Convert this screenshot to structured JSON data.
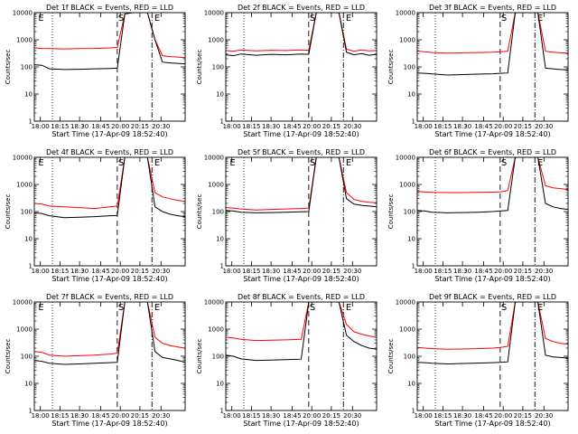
{
  "colors": {
    "events": "#000000",
    "lld": "#ff0000",
    "axis": "#000000",
    "background": "#ffffff"
  },
  "chart_data": [
    {
      "type": "line",
      "title": "Det 1f BLACK = Events, RED = LLD",
      "xlabel": "Start Time (17-Apr-09 18:52:40)",
      "ylabel": "Counts/sec",
      "xticks": [
        "18:00",
        "18:15",
        "18:30",
        "18:45",
        "20:00",
        "20:15",
        "20:30"
      ],
      "yticks": [
        "1",
        "10",
        "100",
        "1000",
        "10000"
      ],
      "ylim": [
        1,
        10000
      ],
      "yscale": "log",
      "annotations": [
        "E",
        "S",
        "E"
      ],
      "series": [
        {
          "color": "#ff0000",
          "x": [
            0,
            0.05,
            0.1,
            0.2,
            0.3,
            0.4,
            0.5,
            0.55,
            0.6,
            0.65,
            0.7,
            0.75,
            0.8,
            0.85,
            0.9,
            0.95,
            1
          ],
          "y": [
            500,
            480,
            470,
            460,
            470,
            480,
            500,
            520,
            9000,
            10000,
            10000,
            10000,
            1000,
            260,
            240,
            230,
            220
          ]
        },
        {
          "color": "#000000",
          "x": [
            0,
            0.05,
            0.1,
            0.2,
            0.3,
            0.4,
            0.5,
            0.55,
            0.6,
            0.65,
            0.7,
            0.75,
            0.8,
            0.85,
            0.9,
            0.95,
            1
          ],
          "y": [
            120,
            115,
            85,
            80,
            82,
            85,
            88,
            90,
            9000,
            10000,
            10000,
            10000,
            1000,
            150,
            140,
            135,
            130
          ]
        }
      ]
    },
    {
      "type": "line",
      "title": "Det 2f BLACK = Events, RED = LLD",
      "xlabel": "Start Time (17-Apr-09 18:52:40)",
      "ylabel": "Counts/sec",
      "xticks": [
        "18:00",
        "18:15",
        "18:30",
        "18:45",
        "20:00",
        "20:15",
        "20:30"
      ],
      "yticks": [
        "1",
        "10",
        "100",
        "1000",
        "10000"
      ],
      "ylim": [
        1,
        10000
      ],
      "yscale": "log",
      "annotations": [
        "S",
        "E"
      ],
      "series": [
        {
          "color": "#ff0000",
          "x": [
            0,
            0.05,
            0.1,
            0.2,
            0.3,
            0.4,
            0.5,
            0.55,
            0.6,
            0.65,
            0.7,
            0.75,
            0.8,
            0.85,
            0.9,
            0.95,
            1
          ],
          "y": [
            400,
            380,
            420,
            390,
            410,
            400,
            420,
            410,
            10000,
            10000,
            10000,
            10000,
            450,
            380,
            420,
            390,
            400
          ]
        },
        {
          "color": "#000000",
          "x": [
            0,
            0.05,
            0.1,
            0.2,
            0.3,
            0.4,
            0.5,
            0.55,
            0.6,
            0.65,
            0.7,
            0.75,
            0.8,
            0.85,
            0.9,
            0.95,
            1
          ],
          "y": [
            280,
            260,
            300,
            270,
            290,
            280,
            300,
            290,
            10000,
            10000,
            10000,
            10000,
            350,
            280,
            310,
            270,
            290
          ]
        }
      ]
    },
    {
      "type": "line",
      "title": "Det 3f BLACK = Events, RED = LLD",
      "xlabel": "Start Time (17-Apr-09 18:52:40)",
      "ylabel": "Counts/sec",
      "xticks": [
        "18:00",
        "18:15",
        "18:30",
        "18:45",
        "20:00",
        "20:15",
        "20:30"
      ],
      "yticks": [
        "1",
        "10",
        "100",
        "1000",
        "10000"
      ],
      "ylim": [
        1,
        10000
      ],
      "yscale": "log",
      "annotations": [
        "S",
        "E"
      ],
      "series": [
        {
          "color": "#ff0000",
          "x": [
            0,
            0.05,
            0.1,
            0.2,
            0.3,
            0.4,
            0.5,
            0.55,
            0.6,
            0.65,
            0.7,
            0.75,
            0.8,
            0.85,
            0.9,
            0.95,
            1
          ],
          "y": [
            380,
            360,
            340,
            320,
            330,
            340,
            350,
            360,
            380,
            10000,
            10000,
            10000,
            10000,
            380,
            350,
            330,
            320
          ]
        },
        {
          "color": "#000000",
          "x": [
            0,
            0.05,
            0.1,
            0.2,
            0.3,
            0.4,
            0.5,
            0.55,
            0.6,
            0.65,
            0.7,
            0.75,
            0.8,
            0.85,
            0.9,
            0.95,
            1
          ],
          "y": [
            60,
            58,
            55,
            50,
            52,
            54,
            56,
            58,
            60,
            10000,
            10000,
            10000,
            10000,
            90,
            85,
            80,
            78
          ]
        }
      ]
    },
    {
      "type": "line",
      "title": "Det 4f BLACK = Events, RED = LLD",
      "xlabel": "Start Time (17-Apr-09 18:52:40)",
      "ylabel": "Counts/sec",
      "xticks": [
        "18:00",
        "18:15",
        "18:30",
        "18:45",
        "20:00",
        "20:15",
        "20:30"
      ],
      "yticks": [
        "1",
        "10",
        "100",
        "1000",
        "10000"
      ],
      "ylim": [
        1,
        10000
      ],
      "yscale": "log",
      "annotations": [
        "E",
        "S",
        "E"
      ],
      "series": [
        {
          "color": "#ff0000",
          "x": [
            0,
            0.05,
            0.1,
            0.2,
            0.3,
            0.4,
            0.5,
            0.55,
            0.6,
            0.65,
            0.7,
            0.75,
            0.8,
            0.85,
            0.9,
            0.95,
            1
          ],
          "y": [
            200,
            190,
            160,
            150,
            140,
            130,
            150,
            160,
            10000,
            10000,
            10000,
            10000,
            500,
            350,
            300,
            260,
            240
          ]
        },
        {
          "color": "#000000",
          "x": [
            0,
            0.05,
            0.1,
            0.2,
            0.3,
            0.4,
            0.5,
            0.55,
            0.6,
            0.65,
            0.7,
            0.75,
            0.8,
            0.85,
            0.9,
            0.95,
            1
          ],
          "y": [
            90,
            85,
            70,
            60,
            62,
            65,
            70,
            72,
            10000,
            10000,
            10000,
            10000,
            150,
            100,
            80,
            70,
            65
          ]
        }
      ]
    },
    {
      "type": "line",
      "title": "Det 5f BLACK = Events, RED = LLD",
      "xlabel": "Start Time (17-Apr-09 18:52:40)",
      "ylabel": "Counts/sec",
      "xticks": [
        "18:00",
        "18:15",
        "18:30",
        "18:45",
        "20:00",
        "20:15",
        "20:30"
      ],
      "yticks": [
        "1",
        "10",
        "100",
        "1000",
        "10000"
      ],
      "ylim": [
        1,
        10000
      ],
      "yscale": "log",
      "annotations": [
        "E",
        "S",
        "E"
      ],
      "series": [
        {
          "color": "#ff0000",
          "x": [
            0,
            0.05,
            0.1,
            0.2,
            0.3,
            0.4,
            0.5,
            0.55,
            0.6,
            0.65,
            0.7,
            0.75,
            0.8,
            0.85,
            0.9,
            0.95,
            1
          ],
          "y": [
            140,
            135,
            125,
            115,
            120,
            125,
            130,
            135,
            10000,
            10000,
            10000,
            10000,
            500,
            280,
            240,
            220,
            210
          ]
        },
        {
          "color": "#000000",
          "x": [
            0,
            0.05,
            0.1,
            0.2,
            0.3,
            0.4,
            0.5,
            0.55,
            0.6,
            0.65,
            0.7,
            0.75,
            0.8,
            0.85,
            0.9,
            0.95,
            1
          ],
          "y": [
            110,
            105,
            95,
            90,
            92,
            95,
            98,
            100,
            10000,
            10000,
            10000,
            10000,
            300,
            190,
            170,
            160,
            150
          ]
        }
      ]
    },
    {
      "type": "line",
      "title": "Det 6f BLACK = Events, RED = LLD",
      "xlabel": "Start Time (17-Apr-09 18:52:40)",
      "ylabel": "Counts/sec",
      "xticks": [
        "18:00",
        "18:15",
        "18:30",
        "18:45",
        "20:00",
        "20:15",
        "20:30"
      ],
      "yticks": [
        "1",
        "10",
        "100",
        "1000",
        "10000"
      ],
      "ylim": [
        1,
        10000
      ],
      "yscale": "log",
      "annotations": [
        "S",
        "E"
      ],
      "series": [
        {
          "color": "#ff0000",
          "x": [
            0,
            0.05,
            0.1,
            0.2,
            0.3,
            0.4,
            0.5,
            0.55,
            0.6,
            0.65,
            0.7,
            0.75,
            0.8,
            0.85,
            0.9,
            0.95,
            1
          ],
          "y": [
            550,
            530,
            510,
            500,
            500,
            510,
            520,
            530,
            600,
            10000,
            10000,
            10000,
            10000,
            900,
            750,
            700,
            650
          ]
        },
        {
          "color": "#000000",
          "x": [
            0,
            0.05,
            0.1,
            0.2,
            0.3,
            0.4,
            0.5,
            0.55,
            0.6,
            0.65,
            0.7,
            0.75,
            0.8,
            0.85,
            0.9,
            0.95,
            1
          ],
          "y": [
            110,
            105,
            95,
            90,
            92,
            95,
            100,
            105,
            110,
            10000,
            10000,
            10000,
            10000,
            200,
            150,
            130,
            120
          ]
        }
      ]
    },
    {
      "type": "line",
      "title": "Det 7f BLACK = Events, RED = LLD",
      "xlabel": "Start Time (17-Apr-09 18:52:40)",
      "ylabel": "Counts/sec",
      "xticks": [
        "18:00",
        "18:15",
        "18:30",
        "18:45",
        "20:00",
        "20:15",
        "20:30"
      ],
      "yticks": [
        "1",
        "10",
        "100",
        "1000",
        "10000"
      ],
      "ylim": [
        1,
        10000
      ],
      "yscale": "log",
      "annotations": [
        "E",
        "S",
        "E"
      ],
      "series": [
        {
          "color": "#ff0000",
          "x": [
            0,
            0.05,
            0.1,
            0.2,
            0.3,
            0.4,
            0.5,
            0.55,
            0.6,
            0.65,
            0.7,
            0.75,
            0.8,
            0.85,
            0.9,
            0.95,
            1
          ],
          "y": [
            150,
            140,
            110,
            100,
            105,
            110,
            120,
            130,
            10000,
            10000,
            10000,
            10000,
            500,
            300,
            250,
            220,
            200
          ]
        },
        {
          "color": "#000000",
          "x": [
            0,
            0.05,
            0.1,
            0.2,
            0.3,
            0.4,
            0.5,
            0.55,
            0.6,
            0.65,
            0.7,
            0.75,
            0.8,
            0.85,
            0.9,
            0.95,
            1
          ],
          "y": [
            70,
            65,
            55,
            50,
            52,
            55,
            58,
            60,
            10000,
            10000,
            10000,
            10000,
            150,
            90,
            80,
            70,
            60
          ]
        }
      ]
    },
    {
      "type": "line",
      "title": "Det 8f BLACK = Events, RED = LLD",
      "xlabel": "Start Time (17-Apr-09 18:52:40)",
      "ylabel": "Counts/sec",
      "xticks": [
        "18:00",
        "18:15",
        "18:30",
        "18:45",
        "20:00",
        "20:15",
        "20:30"
      ],
      "yticks": [
        "1",
        "10",
        "100",
        "1000",
        "10000"
      ],
      "ylim": [
        1,
        10000
      ],
      "yscale": "log",
      "annotations": [
        "S",
        "E"
      ],
      "series": [
        {
          "color": "#ff0000",
          "x": [
            0,
            0.05,
            0.1,
            0.2,
            0.3,
            0.4,
            0.5,
            0.55,
            0.6,
            0.65,
            0.7,
            0.75,
            0.8,
            0.85,
            0.9,
            0.95,
            1
          ],
          "y": [
            500,
            470,
            420,
            380,
            390,
            400,
            420,
            10000,
            10000,
            10000,
            10000,
            10000,
            1500,
            800,
            650,
            560,
            500
          ]
        },
        {
          "color": "#000000",
          "x": [
            0,
            0.05,
            0.1,
            0.2,
            0.3,
            0.4,
            0.5,
            0.55,
            0.6,
            0.65,
            0.7,
            0.75,
            0.8,
            0.85,
            0.9,
            0.95,
            1
          ],
          "y": [
            110,
            100,
            80,
            70,
            72,
            75,
            78,
            10000,
            10000,
            10000,
            10000,
            10000,
            600,
            350,
            250,
            200,
            180
          ]
        }
      ]
    },
    {
      "type": "line",
      "title": "Det 9f BLACK = Events, RED = LLD",
      "xlabel": "Start Time (17-Apr-09 18:52:40)",
      "ylabel": "Counts/sec",
      "xticks": [
        "18:00",
        "18:15",
        "18:30",
        "18:45",
        "20:00",
        "20:15",
        "20:30"
      ],
      "yticks": [
        "1",
        "10",
        "100",
        "1000",
        "10000"
      ],
      "ylim": [
        1,
        10000
      ],
      "yscale": "log",
      "annotations": [
        "S",
        "E"
      ],
      "series": [
        {
          "color": "#ff0000",
          "x": [
            0,
            0.05,
            0.1,
            0.2,
            0.3,
            0.4,
            0.5,
            0.55,
            0.6,
            0.65,
            0.7,
            0.75,
            0.8,
            0.85,
            0.9,
            0.95,
            1
          ],
          "y": [
            210,
            200,
            190,
            180,
            185,
            190,
            200,
            210,
            230,
            10000,
            10000,
            10000,
            10000,
            450,
            350,
            300,
            280
          ]
        },
        {
          "color": "#000000",
          "x": [
            0,
            0.05,
            0.1,
            0.2,
            0.3,
            0.4,
            0.5,
            0.55,
            0.6,
            0.65,
            0.7,
            0.75,
            0.8,
            0.85,
            0.9,
            0.95,
            1
          ],
          "y": [
            60,
            58,
            55,
            52,
            54,
            56,
            58,
            60,
            62,
            10000,
            10000,
            10000,
            10000,
            110,
            95,
            90,
            85
          ]
        }
      ]
    }
  ]
}
